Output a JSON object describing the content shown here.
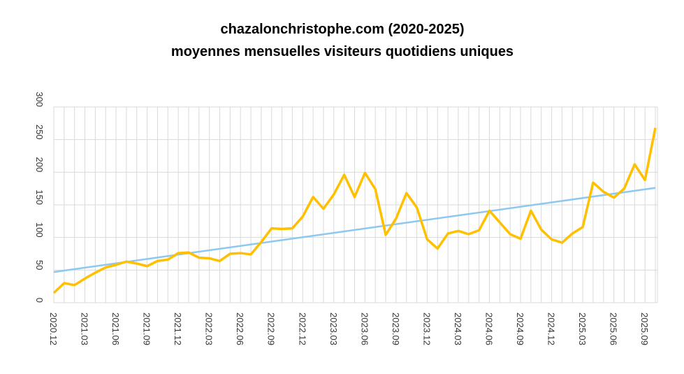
{
  "chart_data": {
    "type": "line",
    "title": "chazalonchristophe.com (2020-2025)",
    "subtitle": "moyennes mensuelles visiteurs quotidiens uniques",
    "categories": [
      "2020.12",
      null,
      null,
      "2021.03",
      null,
      null,
      "2021.06",
      null,
      null,
      "2021.09",
      null,
      null,
      "2021.12",
      null,
      null,
      "2022.03",
      null,
      null,
      "2022.06",
      null,
      null,
      "2022.09",
      null,
      null,
      "2022.12",
      null,
      null,
      "2023.03",
      null,
      null,
      "2023.06",
      null,
      null,
      "2023.09",
      null,
      null,
      "2023.12",
      null,
      null,
      "2024.03",
      null,
      null,
      "2024.06",
      null,
      null,
      "2024.09",
      null,
      null,
      "2024.12",
      null,
      null,
      "2025.03",
      null,
      null,
      "2025.06",
      null,
      null,
      "2025.09",
      null
    ],
    "series": [
      {
        "color": "#ffc000",
        "values": [
          15,
          30,
          27,
          37,
          46,
          54,
          58,
          63,
          60,
          56,
          64,
          66,
          76,
          77,
          69,
          68,
          64,
          75,
          76,
          74,
          93,
          114,
          113,
          114,
          132,
          162,
          144,
          166,
          196,
          162,
          199,
          174,
          104,
          129,
          168,
          146,
          97,
          83,
          106,
          110,
          105,
          111,
          141,
          123,
          105,
          98,
          141,
          112,
          97,
          92,
          106,
          116,
          184,
          170,
          161,
          175,
          212,
          188,
          268
        ]
      }
    ],
    "trendline": {
      "color": "#8dc8f0",
      "start": 47,
      "end": 176
    },
    "ylim": [
      0,
      300
    ],
    "yticks": [
      0,
      50,
      100,
      150,
      200,
      250,
      300
    ],
    "grid": true
  }
}
